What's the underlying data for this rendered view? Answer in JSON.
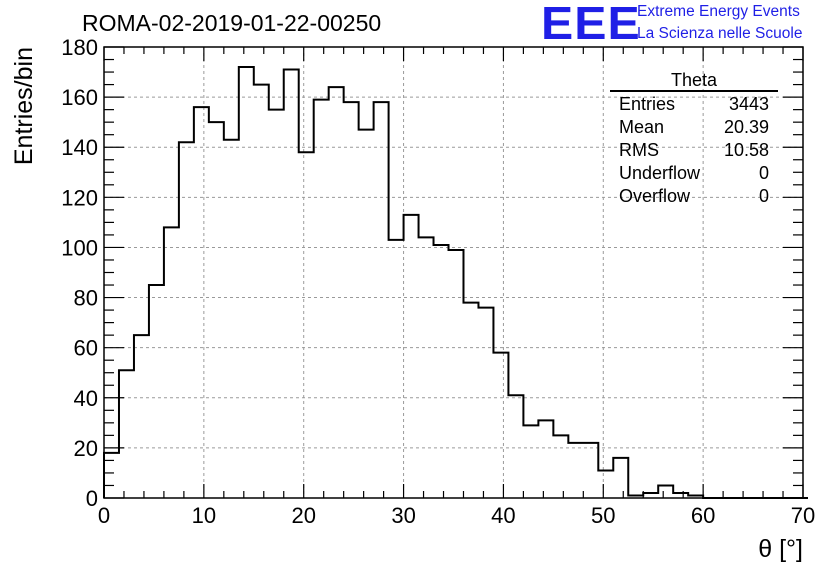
{
  "header": {
    "run_title": "ROMA-02-2019-01-22-00250",
    "logo_mark": "EEE",
    "logo_line1": "Extreme Energy Events",
    "logo_line2": "La Scienza nelle Scuole",
    "logo_color": "#1f1fe6"
  },
  "stats": {
    "title": "Theta",
    "rows": [
      {
        "label": "Entries",
        "value": "3443"
      },
      {
        "label": "Mean",
        "value": "20.39"
      },
      {
        "label": "RMS",
        "value": "10.58"
      },
      {
        "label": "Underflow",
        "value": "0"
      },
      {
        "label": "Overflow",
        "value": "0"
      }
    ]
  },
  "chart_data": {
    "type": "histogram",
    "xlabel": "θ [°]",
    "ylabel": "Entries/bin",
    "xlim": [
      0,
      70
    ],
    "ylim": [
      0,
      180
    ],
    "x_ticks": [
      0,
      10,
      20,
      30,
      40,
      50,
      60,
      70
    ],
    "y_ticks": [
      0,
      20,
      40,
      60,
      80,
      100,
      120,
      140,
      160,
      180
    ],
    "grid": true,
    "bin_width": 1.5,
    "bin_edges_start": 0,
    "values": [
      18,
      51,
      65,
      85,
      108,
      142,
      156,
      150,
      143,
      172,
      165,
      155,
      171,
      138,
      159,
      164,
      158,
      147,
      158,
      103,
      113,
      104,
      101,
      99,
      78,
      76,
      58,
      41,
      29,
      31,
      25,
      22,
      22,
      11,
      16,
      1,
      2,
      5,
      2,
      1,
      0,
      0,
      0,
      0,
      0,
      0,
      0
    ]
  }
}
